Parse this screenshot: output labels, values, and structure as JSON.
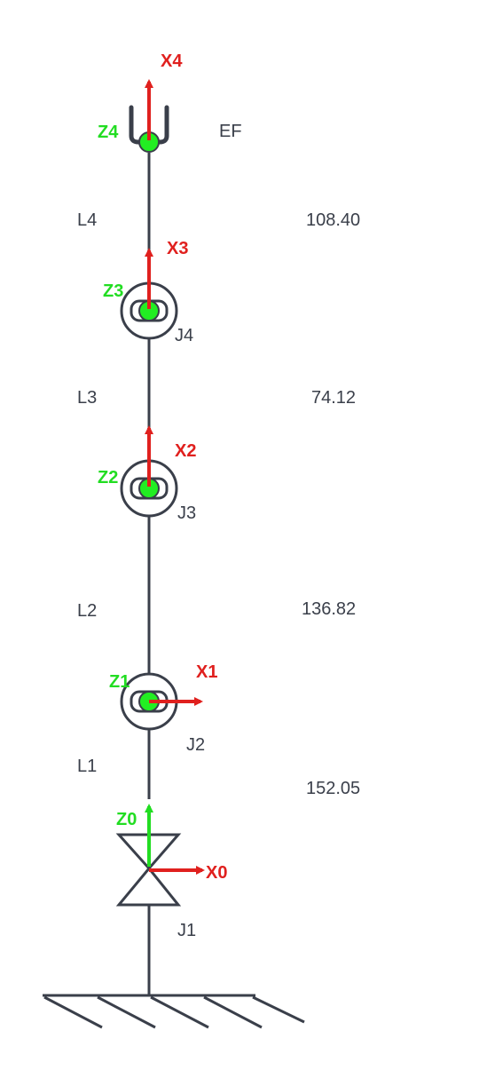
{
  "frames": {
    "x0": "X0",
    "z0": "Z0",
    "x1": "X1",
    "z1": "Z1",
    "x2": "X2",
    "z2": "Z2",
    "x3": "X3",
    "z3": "Z3",
    "x4": "X4",
    "z4": "Z4"
  },
  "joints": {
    "j1": "J1",
    "j2": "J2",
    "j3": "J3",
    "j4": "J4",
    "ef": "EF"
  },
  "links": [
    {
      "name": "L1",
      "length": "152.05"
    },
    {
      "name": "L2",
      "length": "136.82"
    },
    {
      "name": "L3",
      "length": "74.12"
    },
    {
      "name": "L4",
      "length": "108.40"
    }
  ],
  "colors": {
    "link": "#3a3f4a",
    "x_axis": "#e0201e",
    "z_axis": "#22dd22",
    "joint_dot": "#22ee22"
  }
}
